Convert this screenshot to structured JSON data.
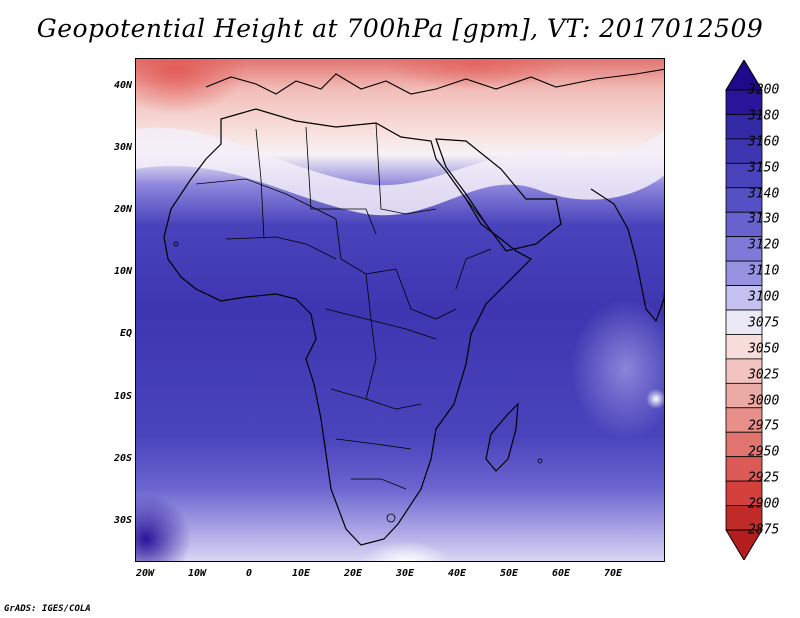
{
  "title": "Geopotential Height at 700hPa [gpm], VT: 2017012509",
  "footer": "GrADS: IGES/COLA",
  "lat_labels": [
    "40N",
    "30N",
    "20N",
    "10N",
    "EQ",
    "10S",
    "20S",
    "30S"
  ],
  "lon_labels": [
    "20W",
    "10W",
    "0",
    "10E",
    "20E",
    "30E",
    "40E",
    "50E",
    "60E",
    "70E"
  ],
  "map": {
    "domain": "Africa and surrounding seas",
    "lon_range": [
      -22,
      80
    ],
    "lat_range": [
      -37,
      45
    ],
    "projection": "latlon"
  },
  "colorbar": {
    "levels": [
      3200,
      3180,
      3160,
      3150,
      3140,
      3130,
      3120,
      3110,
      3100,
      3075,
      3050,
      3025,
      3000,
      2975,
      2950,
      2925,
      2900,
      2875
    ],
    "colors": [
      "#2a149a",
      "#332aa6",
      "#3d36b0",
      "#4842bb",
      "#5550c4",
      "#6962ce",
      "#7f79d8",
      "#9893e1",
      "#c4c0ef",
      "#ece9f7",
      "#f8dedb",
      "#f2c3c0",
      "#ecaaa6",
      "#e88f8a",
      "#e27470",
      "#dc5a56",
      "#d4403c",
      "#c02a27"
    ],
    "top_arrow_color": "#1e0a8a",
    "bottom_arrow_color": "#b51e1e"
  },
  "icons": [
    "colorbar-up-arrow-icon",
    "colorbar-down-arrow-icon"
  ]
}
